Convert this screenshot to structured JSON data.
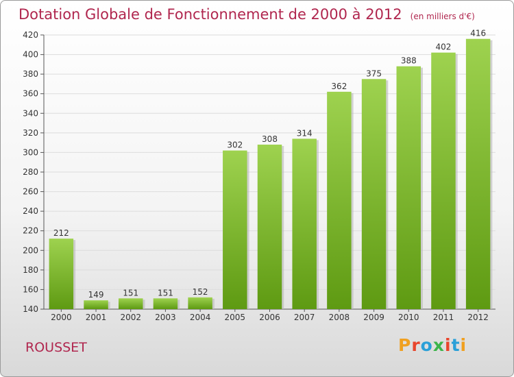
{
  "header": {
    "title": "Dotation Globale de Fonctionnement de 2000 à 2012",
    "subtitle": "(en milliers d'€)"
  },
  "footer": {
    "commune": "ROUSSET",
    "logo": "Proxiti",
    "logo_colors": [
      "#f0a020",
      "#e8452c",
      "#2aa0d8",
      "#3cb44a",
      "#e8452c",
      "#2aa0d8",
      "#f0a020"
    ]
  },
  "chart_data": {
    "type": "bar",
    "categories": [
      "2000",
      "2001",
      "2002",
      "2003",
      "2004",
      "2005",
      "2006",
      "2007",
      "2008",
      "2009",
      "2010",
      "2011",
      "2012"
    ],
    "values": [
      212,
      149,
      151,
      151,
      152,
      302,
      308,
      314,
      362,
      375,
      388,
      402,
      416
    ],
    "title": "Dotation Globale de Fonctionnement de 2000 à 2012",
    "xlabel": "",
    "ylabel": "",
    "ylim": [
      140,
      420
    ],
    "yticks": [
      140,
      160,
      180,
      200,
      220,
      240,
      260,
      280,
      300,
      320,
      340,
      360,
      380,
      400,
      420
    ],
    "grid": true,
    "bar_color_light": "#9ed24f",
    "bar_color_dark": "#5e9a12"
  }
}
